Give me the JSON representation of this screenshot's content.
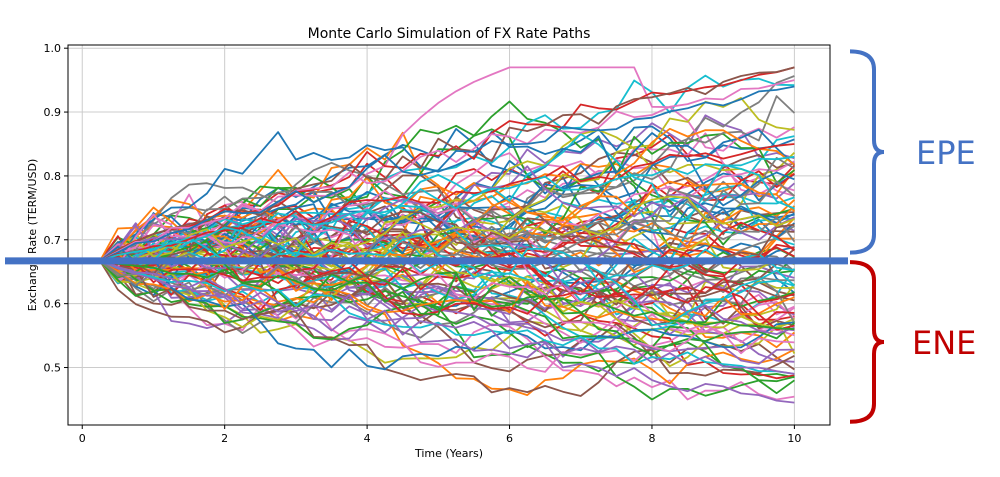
{
  "chart_data": {
    "type": "line",
    "title": "Monte Carlo Simulation of FX Rate Paths",
    "xlabel": "Time (Years)",
    "ylabel": "Exchange Rate (TERM/USD)",
    "xlim": [
      -0.2,
      10.5
    ],
    "ylim": [
      0.41,
      1.005
    ],
    "xticks": [
      0,
      2,
      4,
      6,
      8,
      10
    ],
    "yticks": [
      0.5,
      0.6,
      0.7,
      0.8,
      0.9,
      1.0
    ],
    "ytick_labels": [
      "0.5",
      "0.6",
      "0.7",
      "0.8",
      "0.9",
      "1.0"
    ],
    "grid": true,
    "start": {
      "t": 0.25,
      "rate": 0.667
    },
    "end_t": 10,
    "num_paths": 100,
    "steps": 39,
    "path_colors": [
      "#1f77b4",
      "#ff7f0e",
      "#2ca02c",
      "#d62728",
      "#9467bd",
      "#8c564b",
      "#e377c2",
      "#7f7f7f",
      "#bcbd22",
      "#17becf"
    ],
    "highlighted_paths": [
      {
        "color": "#d62728",
        "end": 0.97,
        "peak": 0.96
      },
      {
        "color": "#8c564b",
        "end": 0.97,
        "peak": 0.975
      },
      {
        "color": "#e377c2",
        "end": 0.95,
        "peak": 0.97
      },
      {
        "color": "#1f77b4",
        "end": 0.94,
        "peak": 0.91
      },
      {
        "color": "#d62728",
        "end": 0.85,
        "peak": 0.88
      },
      {
        "color": "#17becf",
        "end": 0.83,
        "peak": 0.84
      },
      {
        "color": "#9467bd",
        "end": 0.445,
        "peak": 0.45
      },
      {
        "color": "#17becf",
        "end": 0.49,
        "peak": 0.475
      },
      {
        "color": "#2ca02c",
        "end": 0.56,
        "peak": 0.49
      },
      {
        "color": "#9467bd",
        "end": 0.49,
        "peak": 0.485
      }
    ],
    "reference_line": {
      "value": 0.667,
      "color": "#4472c4"
    },
    "annotations": [
      {
        "text": "EPE",
        "color": "#4472c4",
        "range": [
          0.68,
          0.995
        ]
      },
      {
        "text": "ENE",
        "color": "#c00000",
        "range": [
          0.415,
          0.665
        ]
      }
    ]
  }
}
